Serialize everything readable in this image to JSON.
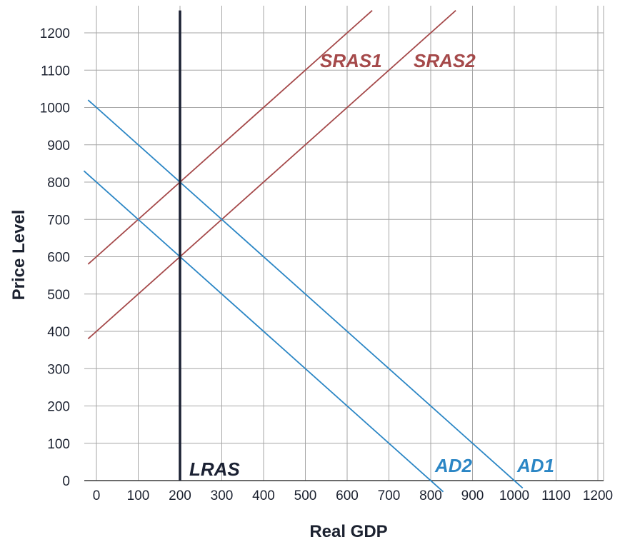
{
  "chart_data": {
    "type": "line",
    "xlabel": "Real GDP",
    "ylabel": "Price Level",
    "xlim": [
      -20,
      1220
    ],
    "ylim": [
      -30,
      1240
    ],
    "x_ticks": [
      "0",
      "100",
      "200",
      "300",
      "400",
      "500",
      "600",
      "700",
      "800",
      "900",
      "1000",
      "1100",
      "1200"
    ],
    "y_ticks": [
      "0",
      "100",
      "200",
      "300",
      "400",
      "500",
      "600",
      "700",
      "800",
      "900",
      "1000",
      "1100",
      "1200"
    ],
    "grid": true,
    "series": [
      {
        "name": "SRAS1",
        "color": "#a5494a",
        "x": [
          -20,
          660
        ],
        "y": [
          580,
          1260
        ]
      },
      {
        "name": "SRAS2",
        "color": "#a5494a",
        "x": [
          -20,
          860
        ],
        "y": [
          380,
          1260
        ]
      },
      {
        "name": "AD1",
        "color": "#2b86c5",
        "x": [
          -20,
          1020
        ],
        "y": [
          1020,
          -20
        ]
      },
      {
        "name": "AD2",
        "color": "#2b86c5",
        "x": [
          -30,
          830
        ],
        "y": [
          830,
          -30
        ]
      },
      {
        "name": "LRAS",
        "color": "#1b2133",
        "x": [
          200,
          200
        ],
        "y": [
          0,
          1260
        ]
      }
    ]
  }
}
